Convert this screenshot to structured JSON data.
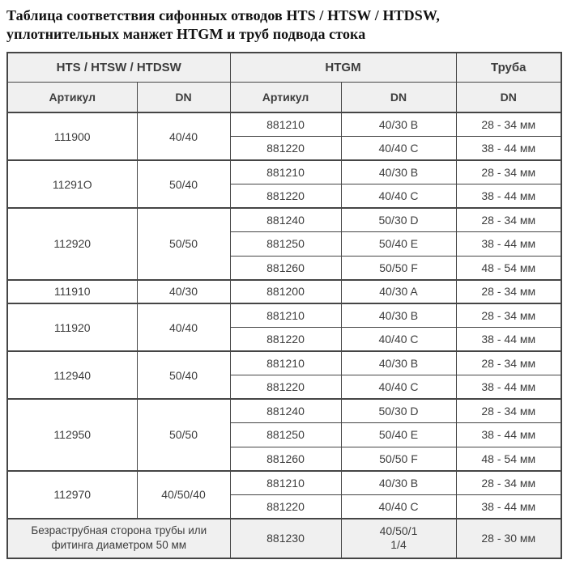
{
  "title": "Таблица соответствия сифонных отводов HTS / HTSW / HTDSW,\nуплотнительных манжет HTGM и труб подвода стока",
  "table": {
    "header": {
      "hts_group": "HTS /  HTSW / HTDSW",
      "htgm_group": "HTGM",
      "pipe_group": "Труба",
      "sub": [
        "Артикул",
        "DN",
        "Артикул",
        "DN",
        "DN"
      ]
    },
    "groups": [
      {
        "article": "111900",
        "dn": "40/40",
        "rows": [
          {
            "article": "881210",
            "dn": "40/30 B",
            "pipe": "28 - 34 мм"
          },
          {
            "article": "881220",
            "dn": "40/40 C",
            "pipe": "38 - 44 мм"
          }
        ]
      },
      {
        "article": "11291O",
        "dn": "50/40",
        "rows": [
          {
            "article": "881210",
            "dn": "40/30 B",
            "pipe": "28 - 34 мм"
          },
          {
            "article": "881220",
            "dn": "40/40 C",
            "pipe": "38 - 44 мм"
          }
        ]
      },
      {
        "article": "112920",
        "dn": "50/50",
        "rows": [
          {
            "article": "881240",
            "dn": "50/30 D",
            "pipe": "28 - 34 мм"
          },
          {
            "article": "881250",
            "dn": "50/40 E",
            "pipe": "38 - 44 мм"
          },
          {
            "article": "881260",
            "dn": "50/50 F",
            "pipe": "48 - 54 мм"
          }
        ]
      },
      {
        "article": "111910",
        "dn": "40/30",
        "rows": [
          {
            "article": "881200",
            "dn": "40/30 A",
            "pipe": "28 - 34 мм"
          }
        ]
      },
      {
        "article": "111920",
        "dn": "40/40",
        "rows": [
          {
            "article": "881210",
            "dn": "40/30 B",
            "pipe": "28 - 34 мм"
          },
          {
            "article": "881220",
            "dn": "40/40 C",
            "pipe": "38 - 44 мм"
          }
        ]
      },
      {
        "article": "112940",
        "dn": "50/40",
        "rows": [
          {
            "article": "881210",
            "dn": "40/30 B",
            "pipe": "28 - 34 мм"
          },
          {
            "article": "881220",
            "dn": "40/40 C",
            "pipe": "38 - 44 мм"
          }
        ]
      },
      {
        "article": "112950",
        "dn": "50/50",
        "rows": [
          {
            "article": "881240",
            "dn": "50/30 D",
            "pipe": "28 - 34 мм"
          },
          {
            "article": "881250",
            "dn": "50/40 E",
            "pipe": "38 - 44 мм"
          },
          {
            "article": "881260",
            "dn": "50/50 F",
            "pipe": "48 - 54 мм"
          }
        ]
      },
      {
        "article": "112970",
        "dn": "40/50/40",
        "rows": [
          {
            "article": "881210",
            "dn": "40/30 B",
            "pipe": "28 - 34 мм"
          },
          {
            "article": "881220",
            "dn": "40/40 C",
            "pipe": "38 - 44 мм"
          }
        ]
      }
    ],
    "footer": {
      "label": "Безраструбная сторона трубы или фитинга диаметром 50 мм",
      "article": "881230",
      "dn": "40/50/1\n1/4",
      "pipe": "28 - 30 мм"
    }
  },
  "colors": {
    "border": "#454545",
    "header_bg": "#f0f0f0",
    "footer_bg": "#f0f0f0",
    "text": "#3d3d3d",
    "title": "#111111"
  }
}
